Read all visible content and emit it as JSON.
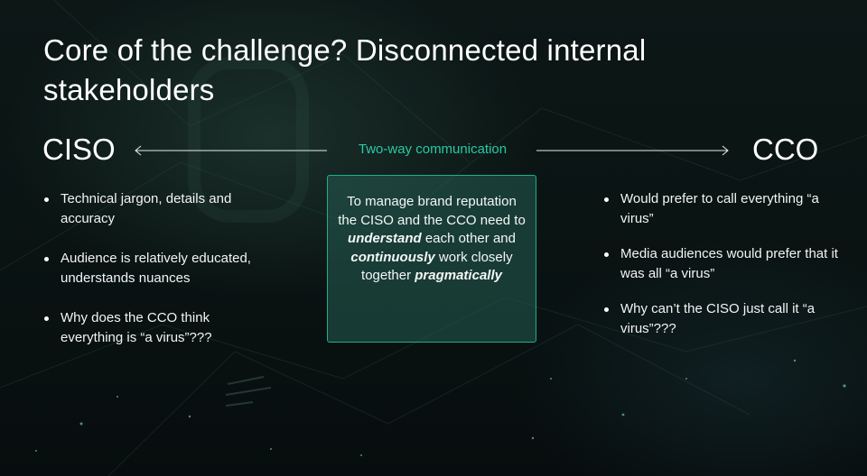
{
  "slide": {
    "title": "Core of the challenge? Disconnected internal stakeholders",
    "left_role": "CISO",
    "right_role": "CCO",
    "communication_label": "Two-way communication",
    "colors": {
      "accent": "#29c9a3",
      "box_border": "#1fae8d",
      "box_fill": "#245c52",
      "background": "#0a1413"
    },
    "left_points": [
      "Technical jargon, details and accuracy",
      "Audience is relatively educated, understands nuances",
      "Why does the CCO think everything is “a virus”???"
    ],
    "right_points": [
      "Would prefer to call everything “a virus”",
      "Media audiences would prefer that it was all “a virus”",
      "Why can’t the CISO just call it “a virus”???"
    ],
    "center_box": {
      "line1": "To manage brand reputation the CISO and the CCO need to",
      "emphasis1": "understand",
      "line2": "each other and",
      "emphasis2": "continuously",
      "line3": "work closely together",
      "emphasis3": "pragmatically"
    }
  }
}
